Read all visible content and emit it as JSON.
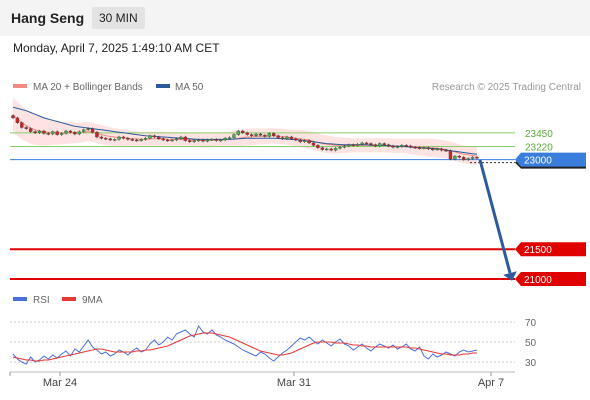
{
  "header": {
    "title": "Hang Seng",
    "timeframe": "30 MIN",
    "datetime": "Monday, April 7, 2025 1:49:10 AM CET"
  },
  "legend": {
    "bollinger": {
      "label": "MA 20 + Bollinger Bands",
      "color": "#f28b82"
    },
    "ma50": {
      "label": "MA 50",
      "color": "#2c5a9c"
    },
    "rsi": {
      "label": "RSI",
      "color": "#4a6fdc"
    },
    "rsi_ma": {
      "label": "9MA",
      "color": "#e53935"
    }
  },
  "credit": "Research © 2025 Trading Central",
  "colors": {
    "up_candle": "#4caf50",
    "down_candle": "#c62828",
    "support_line": "#e00000",
    "resistance_line": "#8ccf6a",
    "current_line": "#3b7ddd",
    "arrow": "#2c5a9c",
    "band_fill": "#fde4e2"
  },
  "chart_data": [
    {
      "type": "candlestick",
      "title": "",
      "x_ticks": [
        "Mar 24",
        "Mar 31",
        "Apr 7"
      ],
      "y_range": [
        20900,
        24000
      ],
      "close": [
        23700,
        23620,
        23540,
        23520,
        23470,
        23450,
        23480,
        23440,
        23430,
        23470,
        23420,
        23440,
        23480,
        23460,
        23430,
        23470,
        23500,
        23520,
        23460,
        23380,
        23360,
        23350,
        23330,
        23340,
        23380,
        23360,
        23340,
        23330,
        23320,
        23340,
        23360,
        23400,
        23380,
        23350,
        23330,
        23320,
        23330,
        23350,
        23380,
        23320,
        23300,
        23320,
        23330,
        23310,
        23330,
        23340,
        23320,
        23330,
        23360,
        23370,
        23420,
        23480,
        23450,
        23420,
        23400,
        23430,
        23410,
        23390,
        23440,
        23400,
        23370,
        23350,
        23380,
        23350,
        23330,
        23300,
        23320,
        23280,
        23240,
        23200,
        23170,
        23180,
        23160,
        23190,
        23210,
        23230,
        23250,
        23240,
        23260,
        23280,
        23270,
        23250,
        23230,
        23270,
        23250,
        23230,
        23210,
        23220,
        23240,
        23230,
        23210,
        23200,
        23190,
        23200,
        23180,
        23170,
        23180,
        23160,
        23150,
        23010,
        23060,
        23040,
        23000,
        23020,
        23040,
        23030
      ],
      "ma20": [
        23750,
        23680,
        23620,
        23570,
        23530,
        23500,
        23480,
        23470,
        23460,
        23460,
        23450,
        23450,
        23450,
        23450,
        23450,
        23450,
        23460,
        23470,
        23460,
        23440,
        23420,
        23400,
        23390,
        23380,
        23370,
        23370,
        23360,
        23350,
        23350,
        23340,
        23340,
        23350,
        23350,
        23350,
        23350,
        23340,
        23340,
        23340,
        23340,
        23340,
        23330,
        23330,
        23330,
        23320,
        23320,
        23330,
        23330,
        23330,
        23340,
        23340,
        23350,
        23360,
        23370,
        23380,
        23380,
        23390,
        23390,
        23390,
        23400,
        23400,
        23390,
        23390,
        23380,
        23370,
        23360,
        23350,
        23340,
        23330,
        23310,
        23290,
        23270,
        23260,
        23250,
        23240,
        23240,
        23240,
        23240,
        23240,
        23240,
        23240,
        23240,
        23240,
        23240,
        23240,
        23240,
        23240,
        23230,
        23230,
        23230,
        23230,
        23220,
        23220,
        23210,
        23210,
        23200,
        23200,
        23190,
        23180,
        23170,
        23150,
        23130,
        23110,
        23090,
        23080,
        23070,
        23060
      ],
      "ma50": [
        23880,
        23860,
        23840,
        23820,
        23790,
        23760,
        23730,
        23700,
        23680,
        23660,
        23640,
        23620,
        23600,
        23580,
        23560,
        23550,
        23540,
        23530,
        23520,
        23510,
        23500,
        23490,
        23480,
        23470,
        23460,
        23450,
        23440,
        23430,
        23420,
        23410,
        23400,
        23395,
        23390,
        23385,
        23380,
        23375,
        23370,
        23365,
        23360,
        23355,
        23350,
        23345,
        23340,
        23340,
        23340,
        23340,
        23340,
        23340,
        23340,
        23340,
        23345,
        23350,
        23355,
        23360,
        23360,
        23360,
        23360,
        23360,
        23360,
        23360,
        23355,
        23350,
        23345,
        23340,
        23335,
        23330,
        23320,
        23310,
        23300,
        23290,
        23280,
        23270,
        23265,
        23260,
        23255,
        23250,
        23250,
        23250,
        23250,
        23250,
        23250,
        23245,
        23240,
        23240,
        23240,
        23235,
        23230,
        23225,
        23220,
        23215,
        23210,
        23205,
        23200,
        23195,
        23190,
        23185,
        23180,
        23170,
        23160,
        23150,
        23140,
        23130,
        23120,
        23110,
        23100,
        23090
      ],
      "bands_halfwidth": [
        300,
        290,
        280,
        270,
        260,
        250,
        240,
        230,
        220,
        210,
        200,
        190,
        185,
        180,
        175,
        170,
        165,
        160,
        160,
        160,
        160,
        160,
        155,
        150,
        145,
        140,
        135,
        130,
        125,
        120,
        120,
        120,
        120,
        120,
        120,
        120,
        120,
        120,
        120,
        120,
        120,
        120,
        120,
        120,
        120,
        120,
        120,
        120,
        125,
        130,
        135,
        140,
        140,
        140,
        140,
        140,
        135,
        130,
        130,
        130,
        130,
        130,
        130,
        135,
        140,
        145,
        150,
        150,
        150,
        150,
        150,
        150,
        145,
        140,
        135,
        130,
        125,
        120,
        120,
        120,
        120,
        120,
        120,
        120,
        120,
        120,
        120,
        120,
        120,
        125,
        130,
        135,
        140,
        145,
        150,
        150,
        150,
        150,
        150,
        150,
        150,
        150,
        150,
        150,
        150,
        150
      ],
      "levels": [
        {
          "value": 23450,
          "label": "23450",
          "kind": "resistance"
        },
        {
          "value": 23220,
          "label": "23220",
          "kind": "resistance"
        },
        {
          "value": 23000,
          "label": "23000",
          "kind": "current"
        },
        {
          "value": 22950,
          "label": "22950",
          "kind": "pivot"
        },
        {
          "value": 21500,
          "label": "21500",
          "kind": "support"
        },
        {
          "value": 21000,
          "label": "21000",
          "kind": "support"
        }
      ]
    },
    {
      "type": "line",
      "title": "",
      "y_range": [
        20,
        80
      ],
      "y_ticks": [
        70,
        50,
        30
      ],
      "series": [
        {
          "name": "RSI",
          "values": [
            38,
            33,
            30,
            28,
            35,
            30,
            32,
            36,
            33,
            37,
            34,
            38,
            41,
            36,
            43,
            40,
            46,
            52,
            45,
            42,
            38,
            40,
            36,
            38,
            42,
            40,
            37,
            41,
            44,
            40,
            42,
            48,
            52,
            47,
            50,
            55,
            52,
            58,
            60,
            62,
            58,
            55,
            66,
            60,
            58,
            62,
            57,
            55,
            52,
            50,
            48,
            45,
            42,
            40,
            38,
            36,
            40,
            38,
            34,
            31,
            35,
            39,
            42,
            46,
            50,
            54,
            52,
            55,
            51,
            48,
            52,
            49,
            46,
            50,
            53,
            48,
            46,
            42,
            45,
            48,
            44,
            41,
            45,
            48,
            46,
            44,
            47,
            43,
            45,
            48,
            43,
            41,
            45,
            36,
            33,
            38,
            35,
            37,
            40,
            38,
            36,
            40,
            42,
            40,
            41,
            42
          ]
        },
        {
          "name": "9MA",
          "values": [
            35,
            34,
            33,
            32,
            32,
            31,
            31,
            32,
            32,
            33,
            34,
            35,
            36,
            37,
            38,
            39,
            40,
            41,
            42,
            43,
            43,
            42,
            41,
            40,
            40,
            40,
            40,
            40,
            41,
            41,
            42,
            42,
            43,
            44,
            45,
            46,
            48,
            50,
            52,
            54,
            56,
            57,
            58,
            59,
            59,
            59,
            58,
            57,
            56,
            55,
            53,
            51,
            49,
            47,
            45,
            43,
            41,
            40,
            39,
            38,
            37,
            37,
            38,
            39,
            41,
            43,
            45,
            47,
            49,
            50,
            50,
            50,
            50,
            49,
            49,
            49,
            48,
            47,
            47,
            46,
            46,
            45,
            45,
            45,
            45,
            45,
            45,
            45,
            45,
            45,
            44,
            44,
            43,
            42,
            41,
            40,
            39,
            38,
            38,
            37,
            37,
            37,
            38,
            38,
            39,
            39
          ]
        }
      ]
    }
  ]
}
